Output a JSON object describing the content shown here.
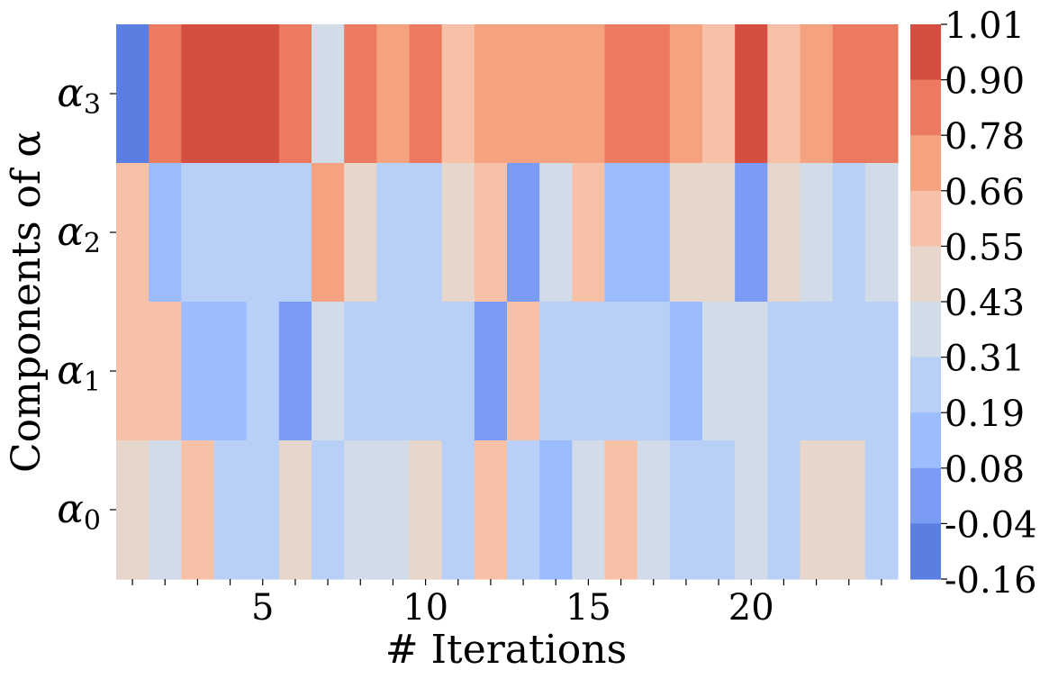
{
  "chart_data": {
    "type": "heatmap",
    "title": "",
    "xlabel": "# Iterations",
    "ylabel": "Components of α",
    "x_tick_labels": [
      "5",
      "10",
      "15",
      "20"
    ],
    "x_tick_label_at_iteration": [
      5,
      10,
      15,
      20
    ],
    "x_range": [
      1,
      24
    ],
    "rows": [
      {
        "label_base": "α",
        "label_sub": "3",
        "values": [
          -0.1,
          0.84,
          0.95,
          0.95,
          0.95,
          0.84,
          0.37,
          0.84,
          0.72,
          0.84,
          0.6,
          0.72,
          0.72,
          0.72,
          0.72,
          0.84,
          0.84,
          0.72,
          0.6,
          0.95,
          0.6,
          0.72,
          0.84,
          0.84
        ]
      },
      {
        "label_base": "α",
        "label_sub": "2",
        "values": [
          0.6,
          0.14,
          0.25,
          0.25,
          0.25,
          0.25,
          0.72,
          0.49,
          0.25,
          0.25,
          0.49,
          0.6,
          0.02,
          0.37,
          0.6,
          0.14,
          0.14,
          0.49,
          0.49,
          0.02,
          0.49,
          0.37,
          0.25,
          0.37
        ]
      },
      {
        "label_base": "α",
        "label_sub": "1",
        "values": [
          0.6,
          0.6,
          0.14,
          0.14,
          0.25,
          0.02,
          0.37,
          0.25,
          0.25,
          0.25,
          0.25,
          0.02,
          0.6,
          0.25,
          0.25,
          0.25,
          0.25,
          0.14,
          0.37,
          0.37,
          0.25,
          0.25,
          0.25,
          0.25
        ]
      },
      {
        "label_base": "α",
        "label_sub": "0",
        "values": [
          0.49,
          0.37,
          0.6,
          0.25,
          0.25,
          0.49,
          0.25,
          0.37,
          0.37,
          0.49,
          0.25,
          0.6,
          0.25,
          0.14,
          0.37,
          0.6,
          0.37,
          0.25,
          0.25,
          0.37,
          0.25,
          0.49,
          0.49,
          0.25
        ]
      }
    ],
    "colorbar": {
      "ticks": [
        "1.01",
        "0.90",
        "0.78",
        "0.66",
        "0.55",
        "0.43",
        "0.31",
        "0.19",
        "0.08",
        "-0.04",
        "-0.16"
      ],
      "bins_high_to_low": [
        "#d44e41",
        "#ec7a60",
        "#f5a281",
        "#f6c1a6",
        "#e7d6cc",
        "#d2dbe8",
        "#b8cff8",
        "#9bbcff",
        "#7a9cf5",
        "#5b7ee3"
      ],
      "range": [
        -0.16,
        1.01
      ]
    },
    "grid": false
  }
}
